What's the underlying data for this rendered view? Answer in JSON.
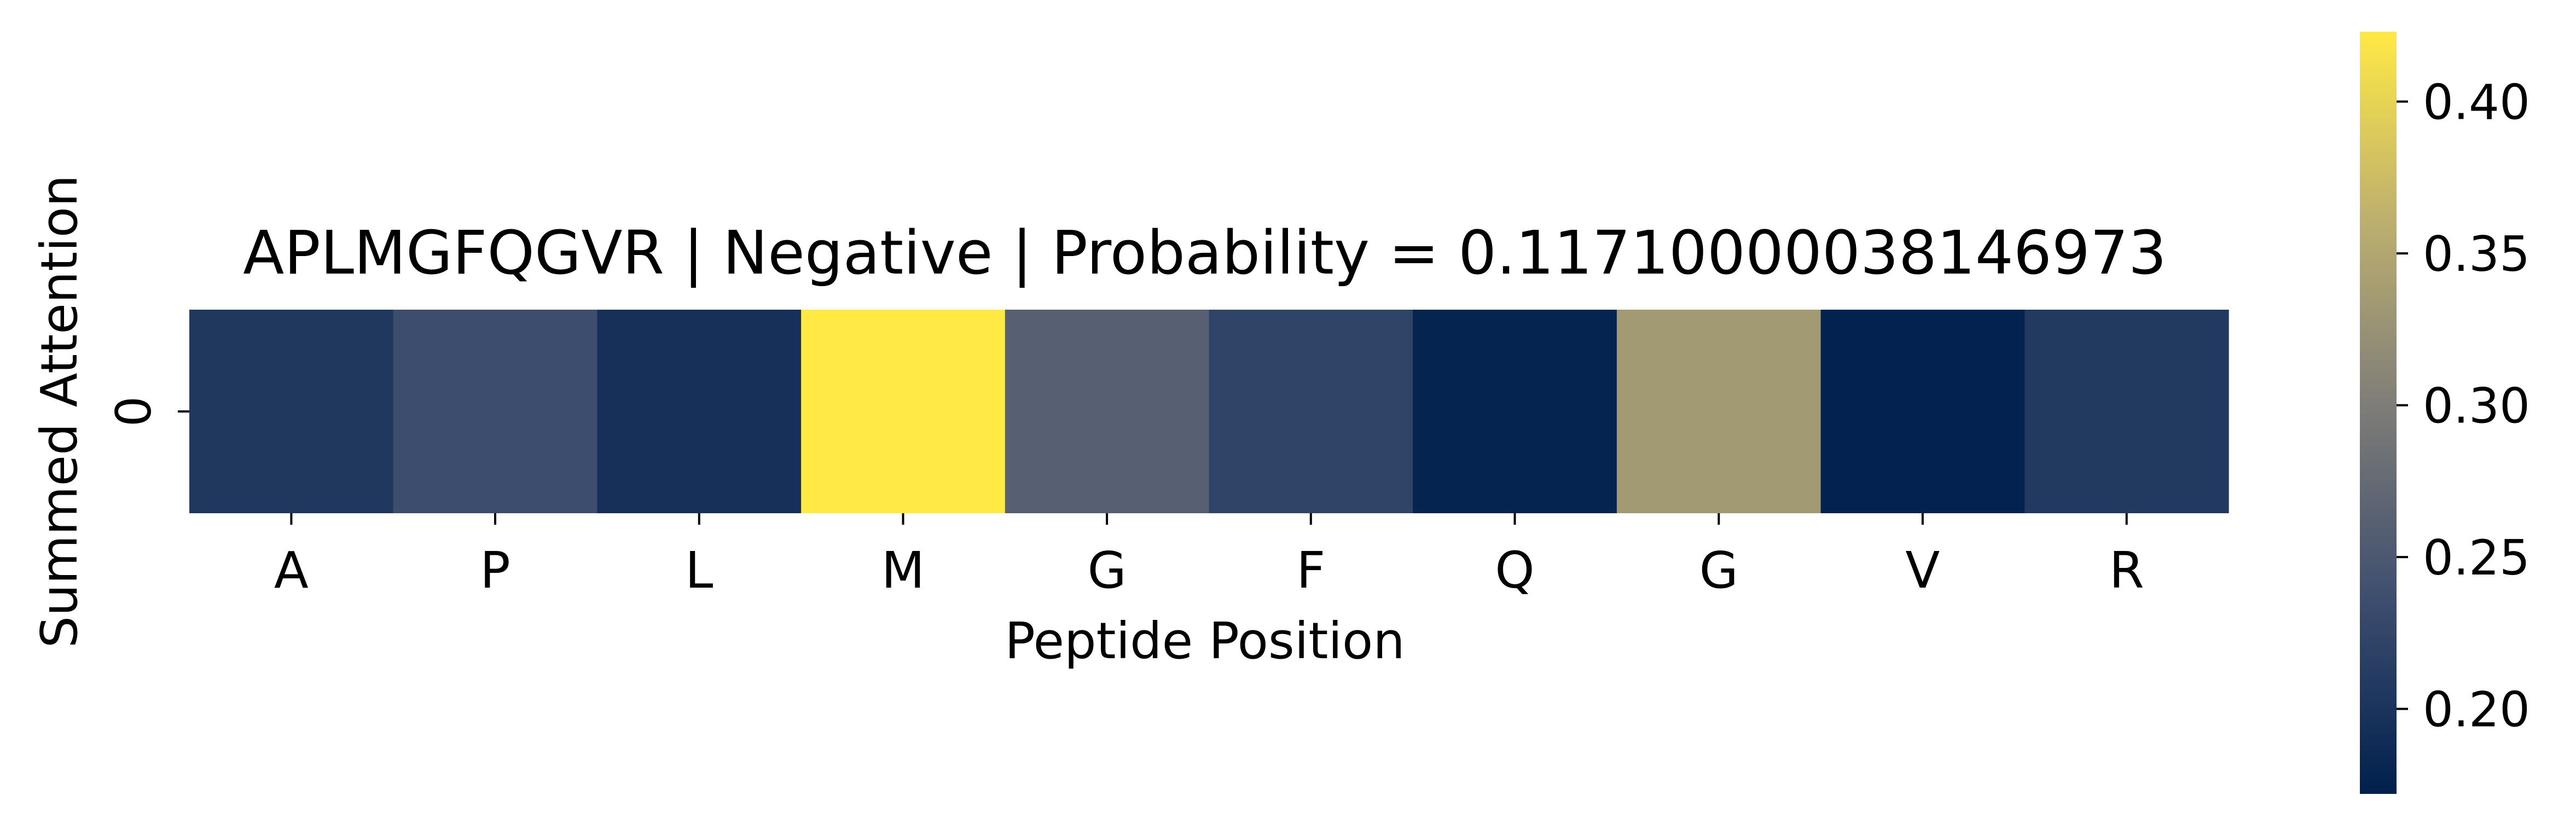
{
  "chart_data": {
    "type": "heatmap",
    "title": "APLMGFQGVR | Negative | Probability = 0.11710000038146973",
    "xlabel": "Peptide Position",
    "ylabel": "Summed Attention",
    "x_categories": [
      "A",
      "P",
      "L",
      "M",
      "G",
      "F",
      "Q",
      "G",
      "V",
      "R"
    ],
    "y_categories": [
      "0"
    ],
    "values": [
      [
        0.205,
        0.235,
        0.195,
        0.423,
        0.26,
        0.222,
        0.177,
        0.335,
        0.175,
        0.208
      ]
    ],
    "colormap": "cividis",
    "colorbar": {
      "range": [
        0.172,
        0.423
      ],
      "ticks": [
        0.2,
        0.25,
        0.3,
        0.35,
        0.4
      ],
      "tick_labels": [
        "0.20",
        "0.25",
        "0.30",
        "0.35",
        "0.40"
      ]
    }
  }
}
